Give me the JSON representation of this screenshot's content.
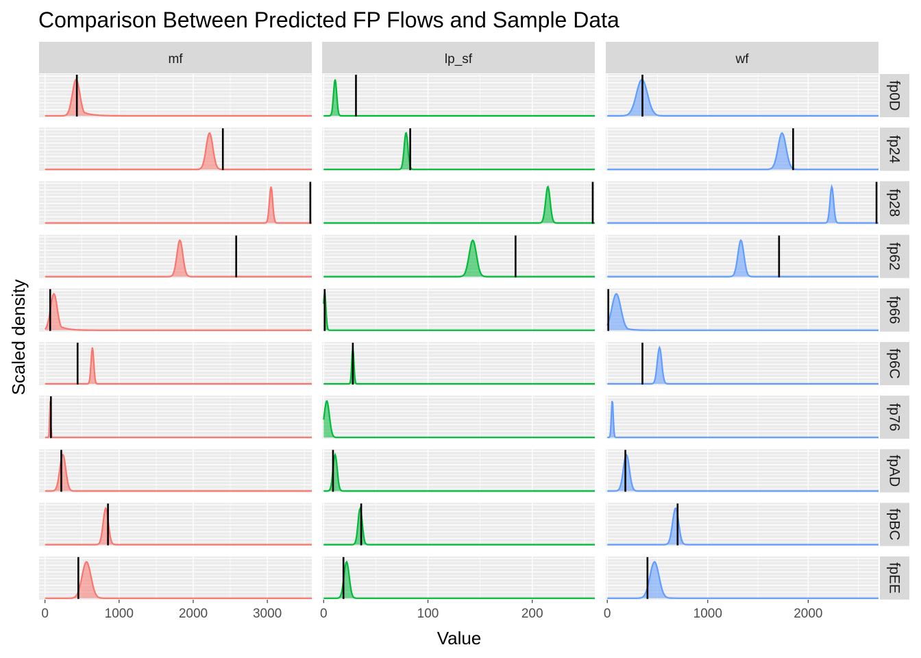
{
  "chart_data": {
    "type": "area",
    "title": "Comparison Between Predicted FP Flows and Sample Data",
    "xlabel": "Value",
    "ylabel": "Scaled density",
    "grid": true,
    "legend": "none",
    "columns": [
      {
        "name": "mf",
        "color": "#F8766D",
        "xlim": [
          -80,
          3600
        ],
        "ticks": [
          0,
          1000,
          2000,
          3000
        ]
      },
      {
        "name": "lp_sf",
        "color": "#00BA38",
        "xlim": [
          -1.5,
          260
        ],
        "ticks": [
          0,
          100,
          200
        ]
      },
      {
        "name": "wf",
        "color": "#619CFF",
        "xlim": [
          -15,
          2700
        ],
        "ticks": [
          0,
          1000,
          2000
        ]
      }
    ],
    "rows": [
      "fp0D",
      "fp24",
      "fp28",
      "fp62",
      "fp66",
      "fp6C",
      "fp76",
      "fpAD",
      "fpBC",
      "fpEE"
    ],
    "panels": [
      [
        {
          "peak": 420,
          "width": 50,
          "skew": 110,
          "sample": 430
        },
        {
          "peak": 2220,
          "width": 45,
          "skew": 0,
          "sample": 2400
        },
        {
          "peak": 3050,
          "width": 22,
          "skew": 0,
          "sample": 3580
        },
        {
          "peak": 1820,
          "width": 40,
          "skew": 0,
          "sample": 2580
        },
        {
          "peak": 120,
          "width": 45,
          "skew": 100,
          "sample": 70
        },
        {
          "peak": 640,
          "width": 18,
          "skew": 0,
          "sample": 440
        },
        {
          "peak": 70,
          "width": 7,
          "skew": 0,
          "sample": 80
        },
        {
          "peak": 240,
          "width": 40,
          "skew": 0,
          "sample": 220
        },
        {
          "peak": 820,
          "width": 35,
          "skew": 0,
          "sample": 850
        },
        {
          "peak": 560,
          "width": 60,
          "skew": 0,
          "sample": 450
        }
      ],
      [
        {
          "peak": 11,
          "width": 1.5,
          "skew": 0,
          "sample": 31
        },
        {
          "peak": 79,
          "width": 1.8,
          "skew": 0,
          "sample": 83
        },
        {
          "peak": 215,
          "width": 2.2,
          "skew": 0,
          "sample": 258
        },
        {
          "peak": 143,
          "width": 3.5,
          "skew": 0,
          "sample": 184
        },
        {
          "peak": 1,
          "width": 1.2,
          "skew": 0,
          "sample": 1
        },
        {
          "peak": 28,
          "width": 1.0,
          "skew": 0,
          "sample": 28
        },
        {
          "peak": 3,
          "width": 2.5,
          "skew": 0,
          "sample": null
        },
        {
          "peak": 11,
          "width": 2.0,
          "skew": 0,
          "sample": 9
        },
        {
          "peak": 35,
          "width": 2.0,
          "skew": 0,
          "sample": 36
        },
        {
          "peak": 22,
          "width": 2.5,
          "skew": 0,
          "sample": 19
        }
      ],
      [
        {
          "peak": 345,
          "width": 55,
          "skew": 0,
          "sample": 350
        },
        {
          "peak": 1740,
          "width": 40,
          "skew": 0,
          "sample": 1850
        },
        {
          "peak": 2235,
          "width": 18,
          "skew": 0,
          "sample": 2680
        },
        {
          "peak": 1330,
          "width": 30,
          "skew": 0,
          "sample": 1710
        },
        {
          "peak": 90,
          "width": 45,
          "skew": 60,
          "sample": 10
        },
        {
          "peak": 520,
          "width": 22,
          "skew": 0,
          "sample": 350
        },
        {
          "peak": 50,
          "width": 9,
          "skew": 0,
          "sample": null
        },
        {
          "peak": 190,
          "width": 30,
          "skew": 0,
          "sample": 180
        },
        {
          "peak": 680,
          "width": 30,
          "skew": 0,
          "sample": 700
        },
        {
          "peak": 470,
          "width": 45,
          "skew": 40,
          "sample": 400
        }
      ]
    ]
  }
}
